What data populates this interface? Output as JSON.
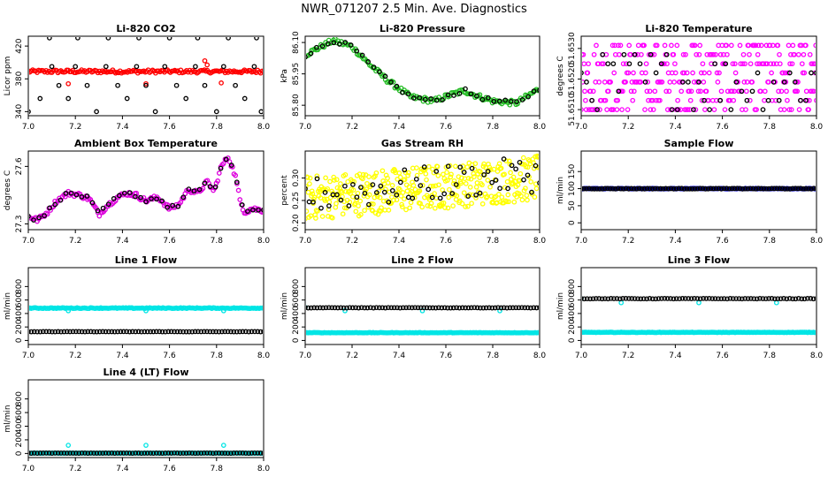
{
  "title": "NWR_071207  2.5 Min. Ave. Diagnostics",
  "chart_data": [
    {
      "id": "co2",
      "type": "scatter",
      "title": "Li-820 CO2",
      "xlabel": "",
      "ylabel": "Licor ppm",
      "xlim": [
        7.0,
        8.0
      ],
      "ylim": [
        335,
        432
      ],
      "xticks": [
        7.0,
        7.2,
        7.4,
        7.6,
        7.8,
        8.0
      ],
      "yticks": [
        340,
        380,
        420
      ],
      "ytick_labels": [
        "340",
        "380",
        "420"
      ],
      "series": [
        {
          "name": "co2 2.5 min",
          "color": "#ff0000",
          "pattern": "flat",
          "base": 389,
          "amp": 2,
          "n": 160
        },
        {
          "name": "co2 outliers",
          "color": "#ff0000",
          "points": [
            [
              7.17,
              374
            ],
            [
              7.5,
              374
            ],
            [
              7.75,
              402
            ],
            [
              7.76,
              397
            ],
            [
              7.82,
              375
            ]
          ]
        },
        {
          "name": "standards",
          "color": "#000000",
          "points": [
            [
              7.0,
              340
            ],
            [
              7.05,
              356
            ],
            [
              7.09,
              430
            ],
            [
              7.1,
              395
            ],
            [
              7.13,
              372
            ],
            [
              7.17,
              356
            ],
            [
              7.2,
              395
            ],
            [
              7.21,
              430
            ],
            [
              7.25,
              372
            ],
            [
              7.29,
              340
            ],
            [
              7.33,
              395
            ],
            [
              7.34,
              430
            ],
            [
              7.38,
              372
            ],
            [
              7.42,
              356
            ],
            [
              7.46,
              395
            ],
            [
              7.47,
              430
            ],
            [
              7.5,
              372
            ],
            [
              7.54,
              340
            ],
            [
              7.58,
              395
            ],
            [
              7.6,
              430
            ],
            [
              7.63,
              372
            ],
            [
              7.67,
              356
            ],
            [
              7.71,
              395
            ],
            [
              7.72,
              430
            ],
            [
              7.75,
              372
            ],
            [
              7.8,
              340
            ],
            [
              7.83,
              395
            ],
            [
              7.85,
              430
            ],
            [
              7.88,
              372
            ],
            [
              7.92,
              356
            ],
            [
              7.96,
              395
            ],
            [
              7.97,
              430
            ],
            [
              7.99,
              340
            ]
          ]
        }
      ]
    },
    {
      "id": "pressure",
      "type": "scatter",
      "title": "Li-820 Pressure",
      "xlabel": "",
      "ylabel": "kPa",
      "xlim": [
        7.0,
        8.0
      ],
      "ylim": [
        85.75,
        86.13
      ],
      "xticks": [
        7.0,
        7.2,
        7.4,
        7.6,
        7.8,
        8.0
      ],
      "yticks": [
        85.8,
        85.95,
        86.1
      ],
      "ytick_labels": [
        "85.80",
        "85.95",
        "86.10"
      ],
      "series": [
        {
          "name": "pressure",
          "color": "#22bb22",
          "pattern": "curve",
          "n": 150,
          "jitter": 0.012,
          "knots": [
            [
              7.0,
              86.04
            ],
            [
              7.05,
              86.07
            ],
            [
              7.12,
              86.11
            ],
            [
              7.2,
              86.08
            ],
            [
              7.27,
              86.0
            ],
            [
              7.35,
              85.92
            ],
            [
              7.45,
              85.84
            ],
            [
              7.55,
              85.82
            ],
            [
              7.62,
              85.85
            ],
            [
              7.68,
              85.87
            ],
            [
              7.72,
              85.85
            ],
            [
              7.8,
              85.82
            ],
            [
              7.9,
              85.81
            ],
            [
              8.0,
              85.88
            ]
          ]
        },
        {
          "name": "pressure standards",
          "color": "#000000",
          "pattern": "curve",
          "n": 42,
          "jitter": 0.01,
          "knots": [
            [
              7.0,
              86.04
            ],
            [
              7.05,
              86.07
            ],
            [
              7.12,
              86.11
            ],
            [
              7.2,
              86.08
            ],
            [
              7.27,
              86.0
            ],
            [
              7.35,
              85.92
            ],
            [
              7.45,
              85.84
            ],
            [
              7.55,
              85.82
            ],
            [
              7.62,
              85.85
            ],
            [
              7.68,
              85.87
            ],
            [
              7.72,
              85.85
            ],
            [
              7.8,
              85.82
            ],
            [
              7.9,
              85.81
            ],
            [
              8.0,
              85.88
            ]
          ]
        }
      ]
    },
    {
      "id": "temperature",
      "type": "scatter",
      "title": "Li-820 Temperature",
      "xlabel": "",
      "ylabel": "degrees C",
      "xlim": [
        7.0,
        8.0
      ],
      "ylim": [
        51.6508,
        51.6534
      ],
      "xticks": [
        7.0,
        7.2,
        7.4,
        7.6,
        7.8,
        8.0
      ],
      "yticks": [
        51.651,
        51.652,
        51.653
      ],
      "ytick_labels": [
        "51.6510",
        "51.6520",
        "51.6530"
      ],
      "series": [
        {
          "name": "temperature",
          "color": "#ff00ff",
          "pattern": "levels",
          "n": 330,
          "levels": [
            51.651,
            51.6513,
            51.6516,
            51.6519,
            51.6522,
            51.6525,
            51.6528,
            51.6531
          ]
        },
        {
          "name": "temperature standards",
          "color": "#000000",
          "pattern": "levels",
          "n": 45,
          "levels": [
            51.651,
            51.6513,
            51.6516,
            51.6519,
            51.6522,
            51.6525,
            51.6528
          ]
        }
      ]
    },
    {
      "id": "ambient",
      "type": "scatter",
      "title": "Ambient Box Temperature",
      "xlabel": "",
      "ylabel": "degrees C",
      "xlim": [
        7.0,
        8.0
      ],
      "ylim": [
        27.27,
        27.68
      ],
      "xticks": [
        7.0,
        7.2,
        7.4,
        7.6,
        7.8,
        8.0
      ],
      "yticks": [
        27.3,
        27.6
      ],
      "ytick_labels": [
        "27.3",
        "27.6"
      ],
      "series": [
        {
          "name": "ambient",
          "color": "#dd00dd",
          "pattern": "curve",
          "n": 160,
          "jitter": 0.012,
          "knots": [
            [
              7.0,
              27.34
            ],
            [
              7.04,
              27.32
            ],
            [
              7.08,
              27.36
            ],
            [
              7.12,
              27.42
            ],
            [
              7.17,
              27.46
            ],
            [
              7.22,
              27.45
            ],
            [
              7.26,
              27.43
            ],
            [
              7.3,
              27.35
            ],
            [
              7.34,
              27.4
            ],
            [
              7.38,
              27.44
            ],
            [
              7.42,
              27.46
            ],
            [
              7.46,
              27.45
            ],
            [
              7.5,
              27.42
            ],
            [
              7.55,
              27.44
            ],
            [
              7.6,
              27.38
            ],
            [
              7.64,
              27.4
            ],
            [
              7.68,
              27.48
            ],
            [
              7.72,
              27.46
            ],
            [
              7.76,
              27.52
            ],
            [
              7.79,
              27.47
            ],
            [
              7.82,
              27.6
            ],
            [
              7.85,
              27.65
            ],
            [
              7.88,
              27.55
            ],
            [
              7.9,
              27.42
            ],
            [
              7.92,
              27.36
            ],
            [
              7.95,
              27.38
            ],
            [
              8.0,
              27.37
            ]
          ]
        },
        {
          "name": "ambient standards",
          "color": "#000000",
          "pattern": "curve",
          "n": 45,
          "jitter": 0.01,
          "knots": [
            [
              7.0,
              27.34
            ],
            [
              7.04,
              27.32
            ],
            [
              7.08,
              27.36
            ],
            [
              7.12,
              27.42
            ],
            [
              7.17,
              27.46
            ],
            [
              7.22,
              27.45
            ],
            [
              7.26,
              27.43
            ],
            [
              7.3,
              27.35
            ],
            [
              7.34,
              27.4
            ],
            [
              7.38,
              27.44
            ],
            [
              7.42,
              27.46
            ],
            [
              7.46,
              27.45
            ],
            [
              7.5,
              27.42
            ],
            [
              7.55,
              27.44
            ],
            [
              7.6,
              27.38
            ],
            [
              7.64,
              27.4
            ],
            [
              7.68,
              27.48
            ],
            [
              7.72,
              27.46
            ],
            [
              7.76,
              27.52
            ],
            [
              7.79,
              27.47
            ],
            [
              7.82,
              27.6
            ],
            [
              7.85,
              27.65
            ],
            [
              7.88,
              27.55
            ],
            [
              7.9,
              27.42
            ],
            [
              7.92,
              27.36
            ],
            [
              7.95,
              27.38
            ],
            [
              8.0,
              27.37
            ]
          ]
        }
      ]
    },
    {
      "id": "rh",
      "type": "scatter",
      "title": "Gas Stream RH",
      "xlabel": "",
      "ylabel": "percent",
      "xlim": [
        7.0,
        8.0
      ],
      "ylim": [
        0.185,
        0.36
      ],
      "xticks": [
        7.0,
        7.2,
        7.4,
        7.6,
        7.8,
        8.0
      ],
      "yticks": [
        0.2,
        0.25,
        0.3
      ],
      "ytick_labels": [
        "0.20",
        "0.25",
        "0.30"
      ],
      "series": [
        {
          "name": "rh",
          "color": "#ffff00",
          "pattern": "noise",
          "n": 380,
          "start": 0.255,
          "end": 0.3,
          "spread": 0.05
        },
        {
          "name": "rh standards",
          "color": "#000000",
          "pattern": "noise",
          "n": 60,
          "start": 0.26,
          "end": 0.31,
          "spread": 0.04
        }
      ]
    },
    {
      "id": "sample",
      "type": "scatter",
      "title": "Sample Flow",
      "xlabel": "",
      "ylabel": "ml/min",
      "xlim": [
        7.0,
        8.0
      ],
      "ylim": [
        -20,
        210
      ],
      "xticks": [
        7.0,
        7.2,
        7.4,
        7.6,
        7.8,
        8.0
      ],
      "yticks": [
        0,
        50,
        100,
        150
      ],
      "ytick_labels": [
        "0",
        "50",
        "100",
        "150"
      ],
      "series": [
        {
          "name": "sample flow",
          "color": "#0000cc",
          "pattern": "flat",
          "base": 100,
          "amp": 1,
          "n": 160
        },
        {
          "name": "sample standards",
          "color": "#000000",
          "pattern": "flat",
          "base": 100,
          "amp": 1,
          "n": 90
        }
      ]
    },
    {
      "id": "line1",
      "type": "scatter",
      "title": "Line 1 Flow",
      "xlabel": "",
      "ylabel": "ml/min",
      "xlim": [
        7.0,
        8.0
      ],
      "ylim": [
        -60,
        1080
      ],
      "xticks": [
        7.0,
        7.2,
        7.4,
        7.6,
        7.8,
        8.0
      ],
      "yticks": [
        0,
        200,
        400,
        600,
        800
      ],
      "ytick_labels": [
        "0",
        "200",
        "400",
        "600",
        "800"
      ],
      "series": [
        {
          "name": "line1 flow",
          "color": "#00e5e5",
          "pattern": "flat",
          "base": 480,
          "amp": 6,
          "n": 160
        },
        {
          "name": "line1 dips",
          "color": "#00e5e5",
          "points": [
            [
              7.17,
              440
            ],
            [
              7.5,
              440
            ],
            [
              7.83,
              440
            ]
          ]
        },
        {
          "name": "line1 standards",
          "color": "#000000",
          "pattern": "flat",
          "base": 130,
          "amp": 2,
          "n": 80
        }
      ]
    },
    {
      "id": "line2",
      "type": "scatter",
      "title": "Line 2 Flow",
      "xlabel": "",
      "ylabel": "ml/min",
      "xlim": [
        7.0,
        8.0
      ],
      "ylim": [
        -60,
        1080
      ],
      "xticks": [
        7.0,
        7.2,
        7.4,
        7.6,
        7.8,
        8.0
      ],
      "yticks": [
        0,
        200,
        400,
        600,
        800
      ],
      "ytick_labels": [
        "0",
        "200",
        "400",
        "600",
        "800"
      ],
      "series": [
        {
          "name": "line2 flow",
          "color": "#00e5e5",
          "pattern": "flat",
          "base": 115,
          "amp": 3,
          "n": 160
        },
        {
          "name": "line2 cyan high",
          "color": "#00e5e5",
          "points": [
            [
              7.0,
              490
            ],
            [
              7.17,
              440
            ],
            [
              7.5,
              440
            ],
            [
              7.83,
              440
            ]
          ]
        },
        {
          "name": "line2 standards",
          "color": "#000000",
          "pattern": "flat",
          "base": 485,
          "amp": 3,
          "n": 80
        }
      ]
    },
    {
      "id": "line3",
      "type": "scatter",
      "title": "Line 3 Flow",
      "xlabel": "",
      "ylabel": "ml/min",
      "xlim": [
        7.0,
        8.0
      ],
      "ylim": [
        -60,
        1080
      ],
      "xticks": [
        7.0,
        7.2,
        7.4,
        7.6,
        7.8,
        8.0
      ],
      "yticks": [
        0,
        200,
        400,
        600,
        800
      ],
      "ytick_labels": [
        "0",
        "200",
        "400",
        "600",
        "800"
      ],
      "series": [
        {
          "name": "line3 flow",
          "color": "#00e5e5",
          "pattern": "flat",
          "base": 120,
          "amp": 3,
          "n": 160
        },
        {
          "name": "line3 cyan high",
          "color": "#00e5e5",
          "points": [
            [
              7.0,
              620
            ],
            [
              7.17,
              560
            ],
            [
              7.5,
              560
            ],
            [
              7.83,
              560
            ]
          ]
        },
        {
          "name": "line3 standards",
          "color": "#000000",
          "pattern": "flat",
          "base": 620,
          "amp": 3,
          "n": 80
        }
      ]
    },
    {
      "id": "line4",
      "type": "scatter",
      "title": "Line 4 (LT) Flow",
      "xlabel": "",
      "ylabel": "ml/min",
      "xlim": [
        7.0,
        8.0
      ],
      "ylim": [
        -60,
        1080
      ],
      "xticks": [
        7.0,
        7.2,
        7.4,
        7.6,
        7.8,
        8.0
      ],
      "yticks": [
        0,
        200,
        400,
        600,
        800
      ],
      "ytick_labels": [
        "0",
        "200",
        "400",
        "600",
        "800"
      ],
      "series": [
        {
          "name": "line4 flow",
          "color": "#00e5e5",
          "pattern": "flat",
          "base": 5,
          "amp": 2,
          "n": 160
        },
        {
          "name": "line4 spikes",
          "color": "#00e5e5",
          "points": [
            [
              7.17,
              120
            ],
            [
              7.5,
              120
            ],
            [
              7.83,
              120
            ]
          ]
        },
        {
          "name": "line4 standards",
          "color": "#000000",
          "pattern": "flat",
          "base": 5,
          "amp": 2,
          "n": 80
        }
      ]
    }
  ]
}
